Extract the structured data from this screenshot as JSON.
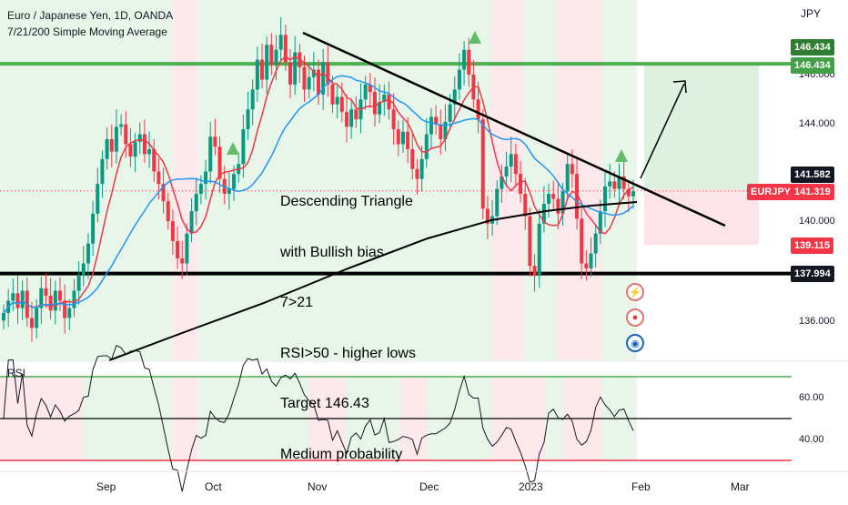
{
  "header": {
    "title": "Euro / Japanese Yen, 1D, OANDA",
    "indicators": "7/21/200 Simple Moving Average"
  },
  "price_axis": {
    "unit": "JPY",
    "ticks": [
      "146.000",
      "144.000",
      "140.000",
      "136.000"
    ]
  },
  "badges": {
    "target_top": "146.434",
    "target_line": "146.434",
    "last_price_label": "141.582",
    "symbol": "EURJPY",
    "symbol_price": "141.319",
    "stop": "139.115",
    "support": "137.994"
  },
  "annotation": [
    "Descending Triangle",
    "with Bullish bias",
    "7>21",
    "RSI>50 - higher lows",
    "Target 146.43",
    "Medium probability"
  ],
  "rsi": {
    "label": "RSI",
    "ticks": [
      "60.00",
      "40.00"
    ]
  },
  "x_axis": {
    "ticks": [
      "Sep",
      "Oct",
      "Nov",
      "Dec",
      "2023",
      "Feb",
      "Mar"
    ]
  },
  "colors": {
    "bull": "#089981",
    "bear": "#f23645",
    "sma7": "#f23645",
    "sma21": "#2196f3",
    "sma200": "#000000",
    "resistance": "#4caf50",
    "green_zone": "#e8f5e9",
    "red_zone": "#fde9ec"
  },
  "chart_data": {
    "type": "candlestick",
    "symbol": "EURJPY",
    "timeframe": "1D",
    "x_range": [
      "2022-08-06",
      "2023-03-10"
    ],
    "y_range": [
      134.6,
      148.4
    ],
    "resistance_level": 146.434,
    "support_level": 137.994,
    "last_price": 141.319,
    "target": 146.43,
    "stop": 139.115,
    "closes": [
      136.4,
      136.9,
      137.2,
      136.6,
      137.3,
      136.2,
      135.8,
      136.6,
      137.4,
      137.1,
      136.5,
      137.3,
      136.9,
      136.2,
      136.6,
      137.3,
      137.9,
      138.4,
      139.2,
      140.4,
      141.6,
      142.6,
      143.4,
      142.9,
      143.9,
      144.0,
      143.2,
      142.7,
      143.3,
      143.6,
      142.8,
      143.0,
      142.1,
      141.6,
      140.9,
      140.1,
      139.3,
      138.6,
      138.4,
      139.6,
      140.5,
      141.2,
      141.6,
      142.1,
      143.5,
      143.1,
      141.8,
      141.2,
      141.4,
      142.0,
      142.4,
      143.8,
      144.6,
      145.4,
      146.6,
      145.8,
      147.2,
      146.4,
      147.0,
      147.6,
      146.5,
      145.6,
      146.9,
      146.3,
      145.4,
      145.9,
      146.2,
      145.2,
      146.5,
      145.6,
      144.8,
      145.1,
      144.5,
      143.9,
      144.6,
      144.2,
      145.0,
      145.6,
      145.3,
      144.4,
      144.9,
      145.2,
      144.6,
      143.8,
      143.2,
      143.7,
      143.0,
      142.2,
      141.8,
      142.6,
      143.6,
      144.3,
      144.0,
      143.4,
      144.1,
      144.8,
      145.4,
      146.2,
      147.0,
      146.0,
      145.0,
      144.2,
      140.6,
      140.0,
      140.3,
      141.4,
      141.9,
      142.3,
      142.8,
      142.0,
      141.2,
      140.3,
      138.3,
      137.9,
      140.0,
      140.8,
      141.2,
      141.0,
      140.4,
      141.3,
      142.4,
      142.0,
      140.2,
      138.4,
      138.2,
      138.8,
      139.6,
      140.5,
      141.5,
      141.7,
      141.4,
      141.9,
      141.4,
      141.1,
      141.3
    ]
  }
}
